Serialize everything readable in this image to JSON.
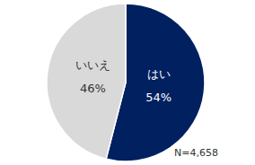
{
  "chart_data": {
    "type": "pie",
    "categories": [
      "はい",
      "いいえ"
    ],
    "values": [
      54,
      46
    ],
    "value_labels": [
      "54%",
      "46%"
    ],
    "colors": [
      "#002060",
      "#d9d9d9"
    ],
    "data_labels": true,
    "annotation": "N=4,658"
  }
}
